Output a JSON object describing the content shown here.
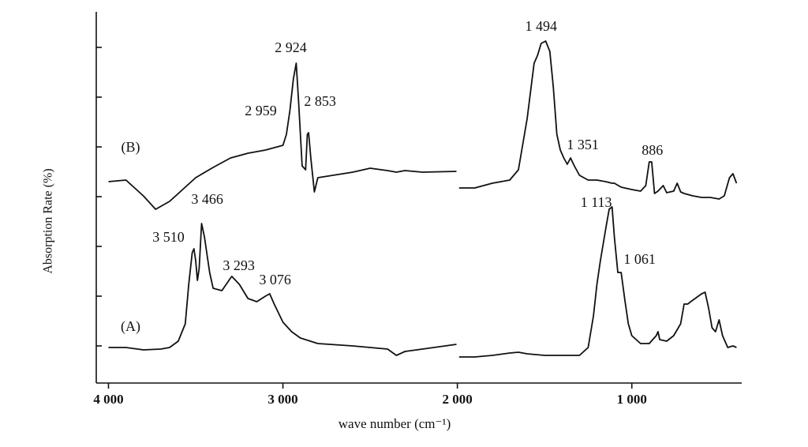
{
  "chart_data": {
    "type": "line",
    "xlabel": "wave number (cm⁻¹)",
    "ylabel": "Absorption Rate (%)",
    "xlim": [
      4070,
      370
    ],
    "ylim": [
      0,
      470
    ],
    "xticks": [
      {
        "value": 4000,
        "label": "4 000"
      },
      {
        "value": 3000,
        "label": "3 000"
      },
      {
        "value": 2000,
        "label": "2 000"
      },
      {
        "value": 1000,
        "label": "1 000"
      }
    ],
    "yticks": [
      47,
      110,
      173,
      236,
      299,
      362,
      425
    ],
    "series": [
      {
        "name": "(B)",
        "color": "#111111",
        "x": [
          4000,
          3900,
          3800,
          3730,
          3650,
          3500,
          3400,
          3300,
          3200,
          3100,
          3000,
          2980,
          2960,
          2940,
          2924,
          2910,
          2890,
          2870,
          2860,
          2853,
          2840,
          2820,
          2800,
          2600,
          2500,
          2400,
          2350,
          2300,
          2200,
          2005,
          1998,
          1990,
          1900,
          1800,
          1700,
          1650,
          1600,
          1560,
          1540,
          1520,
          1494,
          1470,
          1450,
          1430,
          1410,
          1390,
          1370,
          1351,
          1330,
          1300,
          1250,
          1200,
          1150,
          1113,
          1100,
          1061,
          1000,
          950,
          920,
          900,
          886,
          870,
          850,
          820,
          800,
          760,
          740,
          720,
          700,
          650,
          600,
          550,
          500,
          470,
          440,
          420,
          400
        ],
        "values": [
          255,
          257,
          237,
          220,
          230,
          260,
          273,
          285,
          291,
          295,
          301,
          315,
          345,
          385,
          405,
          355,
          275,
          270,
          315,
          317,
          285,
          242,
          260,
          267,
          272,
          269,
          267,
          269,
          267,
          268,
          null,
          247,
          247,
          253,
          257,
          270,
          335,
          405,
          415,
          430,
          433,
          420,
          375,
          315,
          295,
          285,
          277,
          285,
          275,
          263,
          257,
          257,
          255,
          253,
          253,
          248,
          245,
          243,
          250,
          280,
          280,
          240,
          243,
          250,
          241,
          243,
          253,
          242,
          240,
          237,
          235,
          235,
          233,
          237,
          260,
          265,
          253
        ]
      },
      {
        "name": "(A)",
        "color": "#111111",
        "x": [
          4000,
          3900,
          3800,
          3700,
          3650,
          3600,
          3560,
          3540,
          3520,
          3510,
          3500,
          3490,
          3480,
          3466,
          3450,
          3420,
          3400,
          3350,
          3300,
          3293,
          3250,
          3200,
          3150,
          3100,
          3076,
          3050,
          3000,
          2950,
          2900,
          2800,
          2600,
          2400,
          2350,
          2300,
          2200,
          2005,
          1998,
          1990,
          1900,
          1800,
          1700,
          1650,
          1600,
          1500,
          1400,
          1300,
          1250,
          1220,
          1200,
          1180,
          1150,
          1130,
          1113,
          1100,
          1080,
          1061,
          1040,
          1020,
          1000,
          950,
          900,
          860,
          850,
          840,
          800,
          760,
          720,
          700,
          680,
          650,
          600,
          580,
          560,
          540,
          520,
          500,
          480,
          450,
          420,
          400
        ],
        "values": [
          45,
          45,
          42,
          43,
          45,
          53,
          75,
          125,
          165,
          170,
          155,
          130,
          145,
          202,
          185,
          140,
          120,
          117,
          133,
          135,
          125,
          107,
          103,
          110,
          113,
          100,
          77,
          65,
          57,
          50,
          47,
          43,
          35,
          40,
          43,
          49,
          null,
          33,
          33,
          35,
          38,
          39,
          37,
          35,
          35,
          35,
          45,
          85,
          125,
          155,
          195,
          220,
          223,
          185,
          140,
          140,
          105,
          75,
          60,
          50,
          50,
          60,
          65,
          55,
          53,
          60,
          75,
          100,
          100,
          105,
          113,
          115,
          95,
          70,
          65,
          80,
          60,
          45,
          47,
          45
        ]
      }
    ],
    "annotations": [
      {
        "text": "2 924",
        "x": 2955,
        "y": 423
      },
      {
        "text": "2 959",
        "x": 3127,
        "y": 343
      },
      {
        "text": "2 853",
        "x": 2787,
        "y": 355
      },
      {
        "text": "1 494",
        "x": 1520,
        "y": 450
      },
      {
        "text": "1 351",
        "x": 1281,
        "y": 300
      },
      {
        "text": "886",
        "x": 882,
        "y": 293
      },
      {
        "text": "3 466",
        "x": 3434,
        "y": 231
      },
      {
        "text": "3 510",
        "x": 3656,
        "y": 183
      },
      {
        "text": "3 293",
        "x": 3253,
        "y": 147
      },
      {
        "text": "3 076",
        "x": 3045,
        "y": 129
      },
      {
        "text": "1 113",
        "x": 1204,
        "y": 227
      },
      {
        "text": "1 061",
        "x": 955,
        "y": 155
      }
    ]
  }
}
